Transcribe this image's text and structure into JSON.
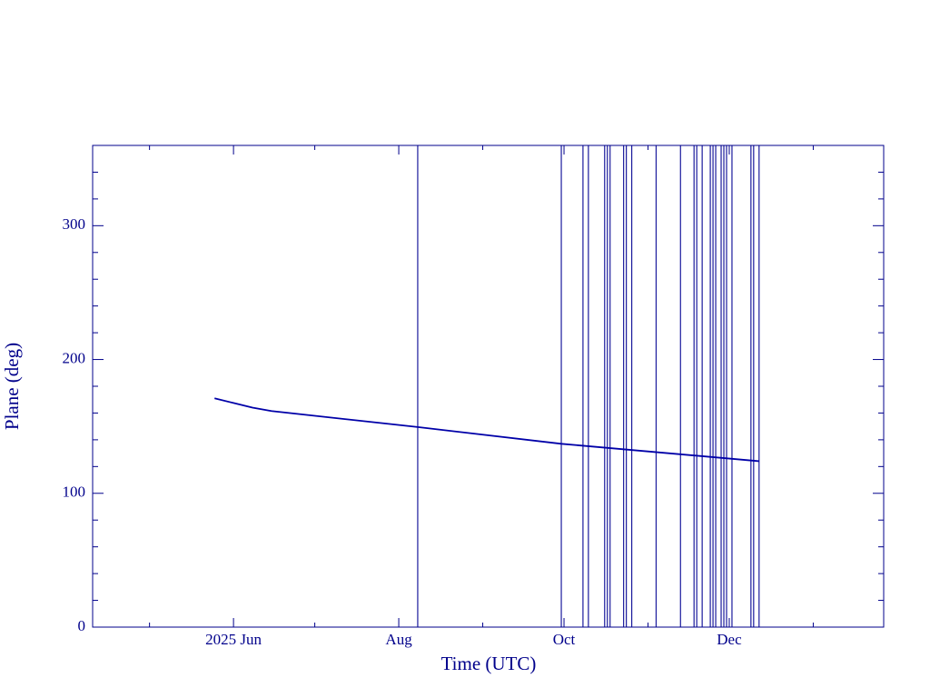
{
  "chart_data": {
    "type": "line",
    "xlabel": "Time (UTC)",
    "ylabel": "Plane (deg)",
    "xlim": [
      "2025-04-10",
      "2026-01-27"
    ],
    "ylim": [
      0,
      360
    ],
    "xticks": [
      {
        "value": "2025-06-01",
        "label": "2025 Jun"
      },
      {
        "value": "2025-08-01",
        "label": "Aug"
      },
      {
        "value": "2025-10-01",
        "label": "Oct"
      },
      {
        "value": "2025-12-01",
        "label": "Dec"
      }
    ],
    "xticks_minor": [
      "2025-05-01",
      "2025-07-01",
      "2025-09-01",
      "2025-11-01",
      "2026-01-01"
    ],
    "yticks": [
      0,
      100,
      200,
      300
    ],
    "yticks_minor": [
      20,
      40,
      60,
      80,
      120,
      140,
      160,
      180,
      220,
      240,
      260,
      280,
      320,
      340
    ],
    "axis_color": "#00008b",
    "series": [
      {
        "color": "#0000a8",
        "x": [
          "2025-05-25",
          "2025-06-01",
          "2025-06-08",
          "2025-06-15",
          "2025-08-08",
          "2025-09-30",
          "2025-12-12"
        ],
        "values": [
          171,
          167.5,
          164,
          161.5,
          149.5,
          137,
          124
        ]
      }
    ],
    "event_lines": {
      "color": "#1a1a9c",
      "x": [
        "2025-08-08",
        "2025-09-30",
        "2025-10-08",
        "2025-10-10",
        "2025-10-16",
        "2025-10-17",
        "2025-10-18",
        "2025-10-23",
        "2025-10-24",
        "2025-10-26",
        "2025-11-04",
        "2025-11-13",
        "2025-11-18",
        "2025-11-19",
        "2025-11-21",
        "2025-11-24",
        "2025-11-25",
        "2025-11-26",
        "2025-11-28",
        "2025-11-29",
        "2025-11-30",
        "2025-12-02",
        "2025-12-09",
        "2025-12-10",
        "2025-12-12"
      ]
    }
  }
}
